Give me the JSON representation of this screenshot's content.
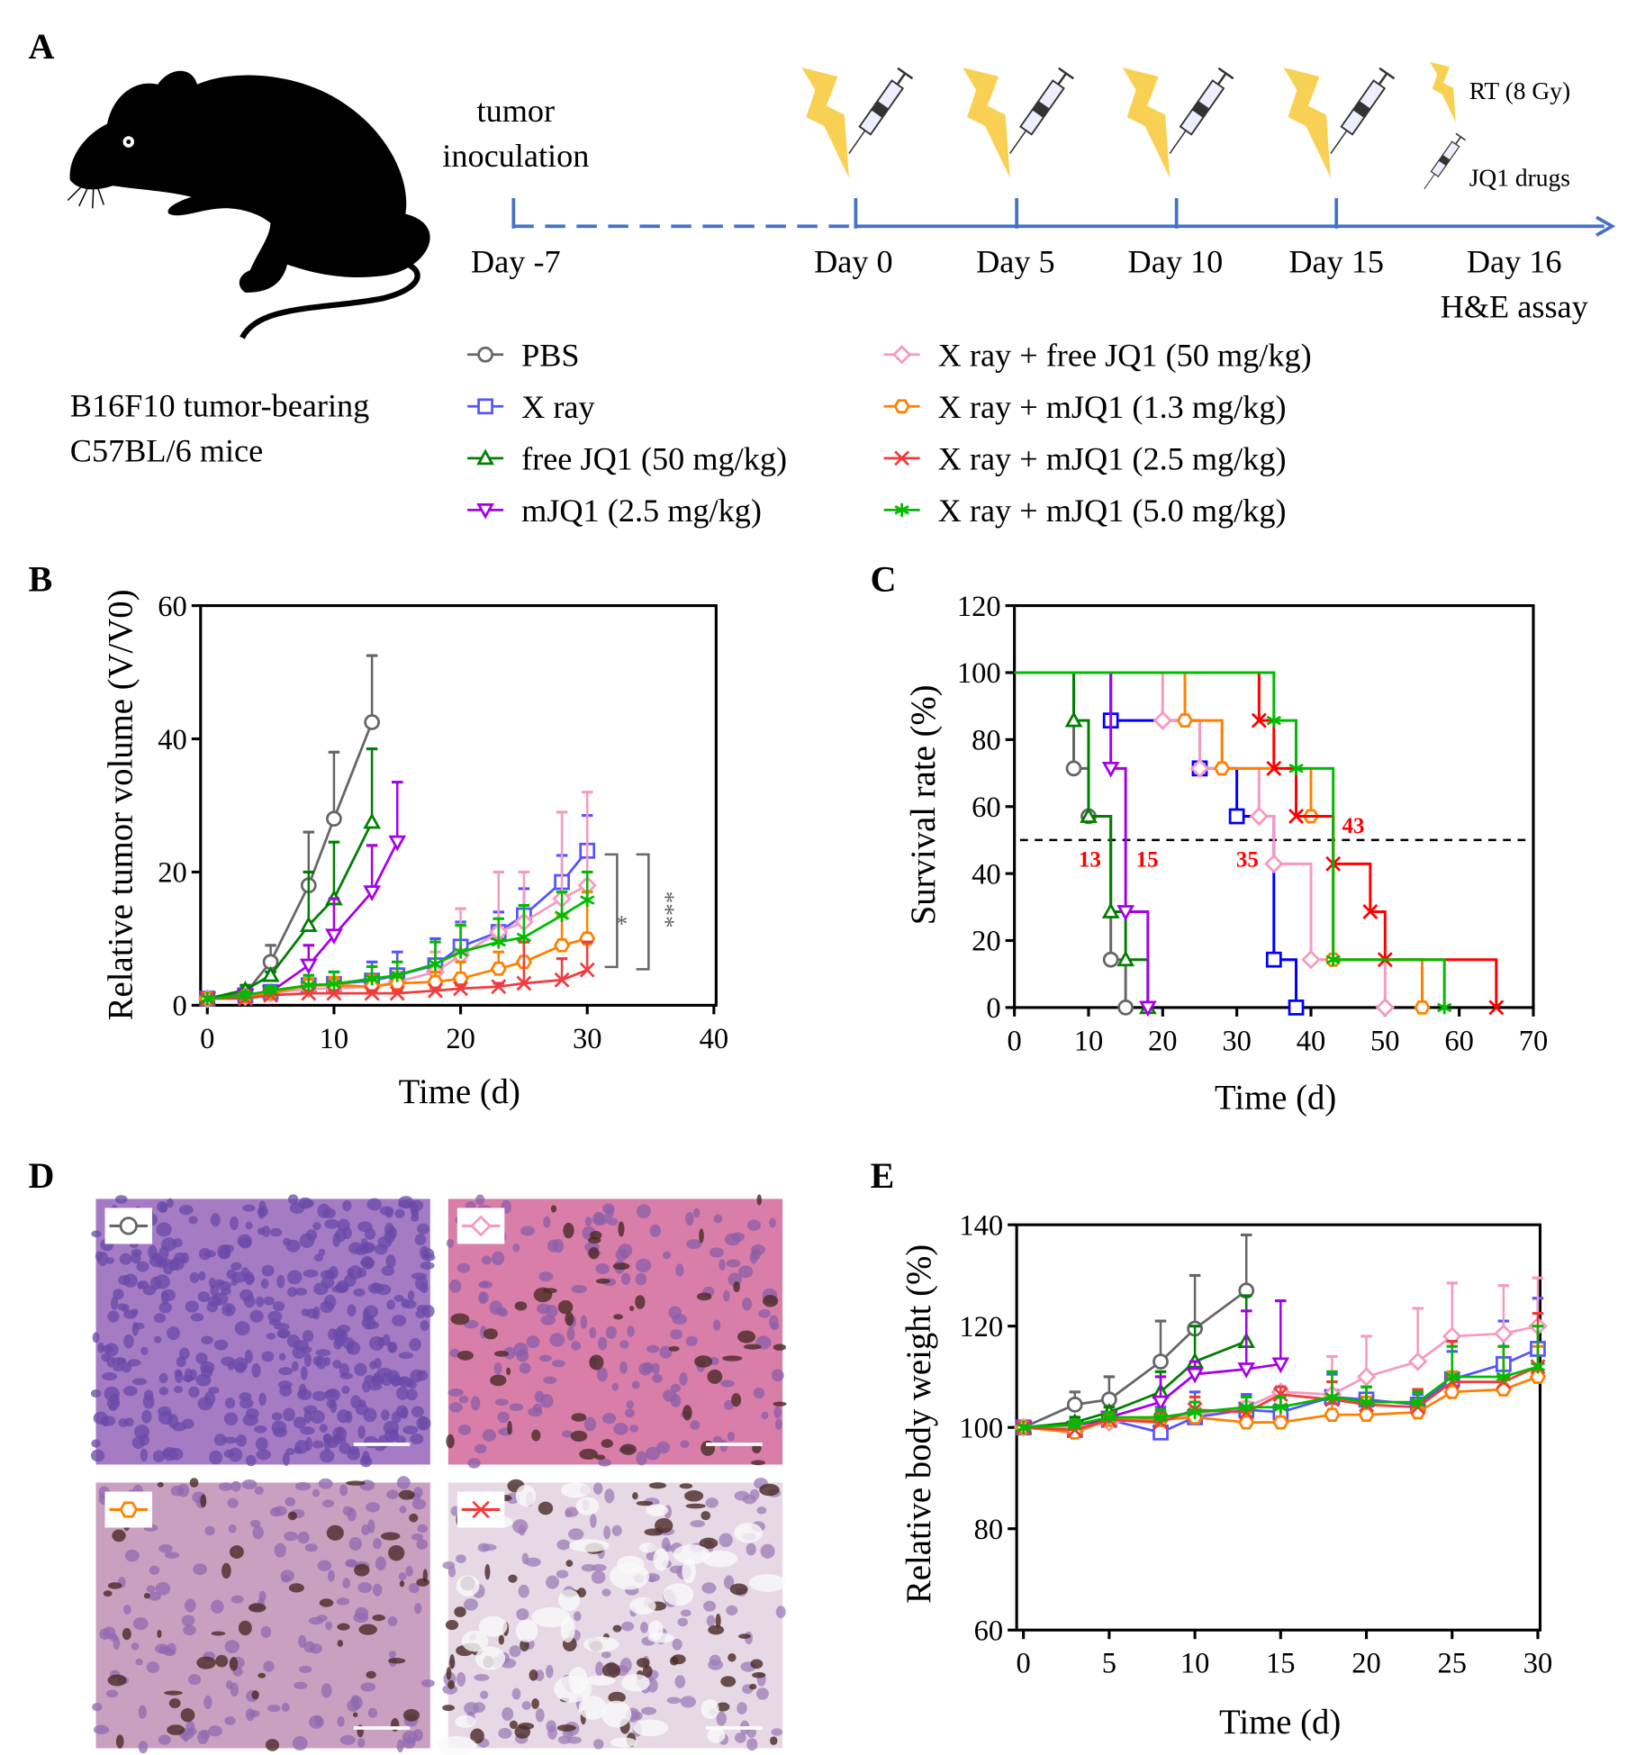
{
  "panel_labels": {
    "a": "A",
    "b": "B",
    "c": "C",
    "d": "D",
    "e": "E"
  },
  "panel_a": {
    "model_line1": "B16F10 tumor-bearing",
    "model_line2": "C57BL/6 mice",
    "inoculation_line1": "tumor",
    "inoculation_line2": "inoculation",
    "days": [
      "Day -7",
      "Day 0",
      "Day 5",
      "Day 10",
      "Day 15",
      "Day 16"
    ],
    "assay": "H&E assay",
    "key_rt": "RT (8 Gy)",
    "key_jq1": "JQ1 drugs",
    "icons": [
      "mouse-silhouette",
      "lightning-bolt",
      "syringe"
    ],
    "timeline_color": "#4472c4",
    "bolt_color": "#f8d154"
  },
  "legend": [
    {
      "label": "PBS",
      "color": "#666666",
      "marker": "circle"
    },
    {
      "label": "X ray",
      "color": "#5555ff",
      "marker": "square"
    },
    {
      "label": "free JQ1 (50 mg/kg)",
      "color": "#007f00",
      "marker": "triangle-up"
    },
    {
      "label": "mJQ1 (2.5 mg/kg)",
      "color": "#a600e8",
      "marker": "triangle-down"
    },
    {
      "label": "X ray + free JQ1 (50 mg/kg)",
      "color": "#f799c0",
      "marker": "diamond"
    },
    {
      "label": "X ray + mJQ1 (1.3 mg/kg)",
      "color": "#ff8000",
      "marker": "hexagon"
    },
    {
      "label": "X ray + mJQ1 (2.5 mg/kg)",
      "color": "#f03c3c",
      "marker": "x"
    },
    {
      "label": "X ray + mJQ1 (5.0 mg/kg)",
      "color": "#00bb00",
      "marker": "asterisk"
    }
  ],
  "chart_data": [
    {
      "panel": "B",
      "type": "line",
      "xlabel": "Time (d)",
      "ylabel": "Relative tumor volume (V/V0)",
      "xlim": [
        0,
        40
      ],
      "ylim": [
        0,
        60
      ],
      "xticks": [
        "0",
        "10",
        "20",
        "30",
        "40"
      ],
      "yticks": [
        "0",
        "20",
        "40",
        "60"
      ],
      "significance": [
        "*",
        "***"
      ],
      "series": [
        {
          "name": "PBS",
          "x": [
            0,
            3,
            5,
            8,
            10,
            13
          ],
          "y": [
            1,
            1.8,
            6.5,
            18,
            28,
            42.5
          ],
          "err_upper": [
            1,
            2,
            9,
            26,
            38,
            52.5
          ]
        },
        {
          "name": "X ray",
          "x": [
            0,
            3,
            5,
            8,
            10,
            13,
            15,
            18,
            20,
            23,
            25,
            28,
            30
          ],
          "y": [
            1,
            1.5,
            2,
            3,
            3.2,
            3.7,
            4.5,
            6,
            8.8,
            11,
            13.5,
            18.5,
            23.2
          ],
          "err_upper": [
            1,
            2,
            2.5,
            4.5,
            5,
            6.5,
            8,
            10,
            12.5,
            14,
            17.5,
            22.5,
            28.5
          ]
        },
        {
          "name": "free JQ1 (50 mg/kg)",
          "x": [
            0,
            3,
            5,
            8,
            10,
            13
          ],
          "y": [
            1,
            2.3,
            4.5,
            12,
            16,
            27.5
          ],
          "err_upper": [
            1,
            3,
            5,
            20,
            24.5,
            38.5
          ]
        },
        {
          "name": "mJQ1 (2.5 mg/kg)",
          "x": [
            0,
            3,
            5,
            8,
            10,
            13,
            15
          ],
          "y": [
            1,
            1.5,
            2,
            6,
            10.5,
            17,
            24.5
          ],
          "err_upper": [
            1,
            2,
            2.5,
            9,
            16,
            24,
            33.5
          ]
        },
        {
          "name": "X ray + free JQ1 (50 mg/kg)",
          "x": [
            0,
            3,
            5,
            8,
            10,
            13,
            15,
            18,
            20,
            23,
            25,
            28,
            30
          ],
          "y": [
            1,
            1.3,
            1.8,
            2.5,
            2.5,
            2.8,
            3.5,
            5,
            7.5,
            11,
            12.5,
            16,
            18
          ],
          "err_upper": [
            1,
            1.6,
            2.2,
            3.5,
            4,
            4.5,
            5,
            8,
            14.5,
            20,
            20,
            29,
            32
          ]
        },
        {
          "name": "X ray + mJQ1 (1.3 mg/kg)",
          "x": [
            0,
            3,
            5,
            8,
            10,
            13,
            15,
            18,
            20,
            23,
            25,
            28,
            30
          ],
          "y": [
            1,
            1.3,
            1.8,
            3,
            3,
            2.8,
            3.3,
            3.5,
            4,
            5.5,
            6.5,
            9,
            10
          ],
          "err_upper": [
            1,
            1.6,
            2.2,
            4,
            4.2,
            4.5,
            4.5,
            5,
            6.5,
            8,
            9.5,
            13.5,
            17
          ]
        },
        {
          "name": "X ray + mJQ1 (2.5 mg/kg)",
          "x": [
            0,
            3,
            5,
            8,
            10,
            13,
            15,
            18,
            20,
            23,
            25,
            28,
            30
          ],
          "y": [
            1,
            1,
            1.5,
            1.8,
            1.8,
            1.8,
            1.8,
            2.2,
            2.5,
            2.8,
            3.3,
            3.8,
            5.3
          ],
          "err_upper": [
            1,
            1.2,
            1.8,
            2.2,
            2.2,
            2.2,
            2.2,
            2.6,
            3,
            3.3,
            9.5,
            7,
            9.5
          ]
        },
        {
          "name": "X ray + mJQ1 (5.0 mg/kg)",
          "x": [
            0,
            3,
            5,
            8,
            10,
            13,
            15,
            18,
            20,
            23,
            25,
            28,
            30
          ],
          "y": [
            1,
            1.5,
            2.2,
            3,
            3.2,
            4,
            4.5,
            6.2,
            8,
            9.5,
            10.2,
            13.5,
            15.8
          ],
          "err_upper": [
            1,
            2,
            2.8,
            4.5,
            5,
            5.8,
            6.5,
            9.5,
            12,
            13,
            15,
            17,
            20
          ]
        }
      ]
    },
    {
      "panel": "C",
      "type": "line",
      "subtype": "kaplan-meier step",
      "xlabel": "Time (d)",
      "ylabel": "Survival rate (%)",
      "xlim": [
        0,
        70
      ],
      "ylim": [
        0,
        120
      ],
      "xticks": [
        "0",
        "10",
        "20",
        "30",
        "40",
        "50",
        "60",
        "70"
      ],
      "yticks": [
        "0",
        "20",
        "40",
        "60",
        "80",
        "100",
        "120"
      ],
      "reference_line": 50,
      "median_labels": [
        "13",
        "15",
        "35",
        "43"
      ],
      "median_label_color": "#ff0000",
      "series": [
        {
          "name": "PBS",
          "color": "#666666",
          "t": [
            8,
            10,
            13,
            15
          ],
          "s": [
            71.4,
            57.1,
            14.3,
            0
          ]
        },
        {
          "name": "X ray",
          "color": "#0000ff",
          "t": [
            13,
            25,
            30,
            35,
            38
          ],
          "s": [
            85.7,
            71.4,
            57.1,
            14.3,
            0
          ]
        },
        {
          "name": "free JQ1 (50 mg/kg)",
          "color": "#007f00",
          "t": [
            8,
            10,
            13,
            15,
            18
          ],
          "s": [
            85.7,
            57.1,
            28.6,
            14.3,
            0
          ]
        },
        {
          "name": "mJQ1 (2.5 mg/kg)",
          "color": "#a600e8",
          "t": [
            13,
            15,
            18
          ],
          "s": [
            71.4,
            28.6,
            0
          ]
        },
        {
          "name": "X ray + free JQ1 (50 mg/kg)",
          "color": "#f799c0",
          "t": [
            20,
            25,
            33,
            35,
            40,
            50
          ],
          "s": [
            85.7,
            71.4,
            57.1,
            42.9,
            14.3,
            0
          ]
        },
        {
          "name": "X ray + mJQ1 (1.3 mg/kg)",
          "color": "#ff8000",
          "t": [
            23,
            28,
            40,
            43,
            55
          ],
          "s": [
            85.7,
            71.4,
            57.1,
            14.3,
            0
          ]
        },
        {
          "name": "X ray + mJQ1 (2.5 mg/kg)",
          "color": "#ff0000",
          "t": [
            33,
            35,
            38,
            43,
            48,
            50,
            65
          ],
          "s": [
            85.7,
            71.4,
            57.1,
            42.9,
            28.6,
            14.3,
            0
          ]
        },
        {
          "name": "X ray + mJQ1 (5.0 mg/kg)",
          "color": "#00bb00",
          "t": [
            35,
            38,
            43,
            58
          ],
          "s": [
            85.7,
            71.4,
            14.3,
            0
          ]
        }
      ]
    },
    {
      "panel": "E",
      "type": "line",
      "xlabel": "Time (d)",
      "ylabel": "Relative body weight (%)",
      "xlim": [
        0,
        30
      ],
      "ylim": [
        60,
        140
      ],
      "xticks": [
        "0",
        "5",
        "10",
        "15",
        "20",
        "25",
        "30"
      ],
      "yticks": [
        "60",
        "80",
        "100",
        "120",
        "140"
      ],
      "series": [
        {
          "name": "PBS",
          "x": [
            0,
            3,
            5,
            8,
            10,
            13
          ],
          "y": [
            100,
            104.5,
            105.5,
            113,
            119.5,
            127
          ],
          "err_upper": [
            100,
            107,
            110,
            121,
            130,
            138
          ]
        },
        {
          "name": "X ray",
          "x": [
            0,
            3,
            5,
            8,
            10,
            13,
            15,
            18,
            20,
            23,
            25,
            28,
            30
          ],
          "y": [
            100,
            99.5,
            101.5,
            99,
            102,
            103.5,
            103,
            106,
            105.5,
            104.5,
            109.5,
            112.5,
            115.5
          ],
          "err_upper": [
            100,
            102,
            103,
            104,
            107,
            106.5,
            106.5,
            110.5,
            110.5,
            106.5,
            115,
            121,
            125.5
          ]
        },
        {
          "name": "free JQ1 (50 mg/kg)",
          "x": [
            0,
            3,
            5,
            8,
            10,
            13
          ],
          "y": [
            100,
            101,
            103,
            107,
            113,
            117
          ],
          "err_upper": [
            100,
            102,
            104,
            111,
            120,
            126
          ]
        },
        {
          "name": "mJQ1 (2.5 mg/kg)",
          "x": [
            0,
            3,
            5,
            8,
            10,
            13,
            15
          ],
          "y": [
            100,
            100,
            102,
            105,
            110.5,
            111.5,
            112.5
          ],
          "err_upper": [
            100,
            101,
            103,
            110,
            113,
            123,
            125
          ]
        },
        {
          "name": "X ray + free JQ1 (50 mg/kg)",
          "x": [
            0,
            3,
            5,
            8,
            10,
            13,
            15,
            18,
            20,
            23,
            25,
            28,
            30
          ],
          "y": [
            100,
            100,
            101,
            102,
            102.5,
            104,
            107,
            106.5,
            110,
            113,
            118,
            118.5,
            120
          ],
          "err_upper": [
            100,
            101,
            102,
            103,
            104,
            105,
            108,
            114,
            118,
            123.5,
            128.5,
            128,
            129.5
          ]
        },
        {
          "name": "X ray + mJQ1 (1.3 mg/kg)",
          "x": [
            0,
            3,
            5,
            8,
            10,
            13,
            15,
            18,
            20,
            23,
            25,
            28,
            30
          ],
          "y": [
            100,
            99,
            101.5,
            101.5,
            102,
            101,
            101,
            102.5,
            102.5,
            103,
            107,
            107.5,
            110
          ],
          "err_upper": [
            100,
            100,
            102,
            102.5,
            103,
            103,
            104,
            106,
            106,
            107,
            111,
            116,
            116
          ]
        },
        {
          "name": "X ray + mJQ1 (2.5 mg/kg)",
          "x": [
            0,
            3,
            5,
            8,
            10,
            13,
            15,
            18,
            20,
            23,
            25,
            28,
            30
          ],
          "y": [
            100,
            99.5,
            101.5,
            101,
            103.5,
            103,
            106.5,
            105.5,
            104.5,
            104,
            109,
            109,
            112
          ],
          "err_upper": [
            100,
            101,
            103,
            103,
            106,
            106,
            108,
            109,
            108,
            107.5,
            117,
            116,
            122.5
          ]
        },
        {
          "name": "X ray + mJQ1 (5.0 mg/kg)",
          "x": [
            0,
            3,
            5,
            8,
            10,
            13,
            15,
            18,
            20,
            23,
            25,
            28,
            30
          ],
          "y": [
            100,
            100.5,
            102,
            102,
            103,
            104,
            104,
            106,
            105,
            105,
            110,
            110,
            112
          ],
          "err_upper": [
            100,
            101.5,
            103,
            103.5,
            105,
            106,
            106,
            111,
            108,
            107,
            116,
            116,
            120
          ]
        }
      ]
    }
  ],
  "panel_d": {
    "images": [
      {
        "group": "PBS",
        "marker": "circle",
        "color": "#666666",
        "tone": "dense-purple"
      },
      {
        "group": "X ray + free JQ1 (50 mg/kg)",
        "marker": "diamond",
        "color": "#f799c0",
        "tone": "pink-pigmented"
      },
      {
        "group": "X ray + mJQ1 (1.3 mg/kg)",
        "marker": "hexagon",
        "color": "#ff8000",
        "tone": "pink-brown"
      },
      {
        "group": "X ray + mJQ1 (2.5 mg/kg)",
        "marker": "x",
        "color": "#f03c3c",
        "tone": "pale-necrotic"
      }
    ]
  }
}
